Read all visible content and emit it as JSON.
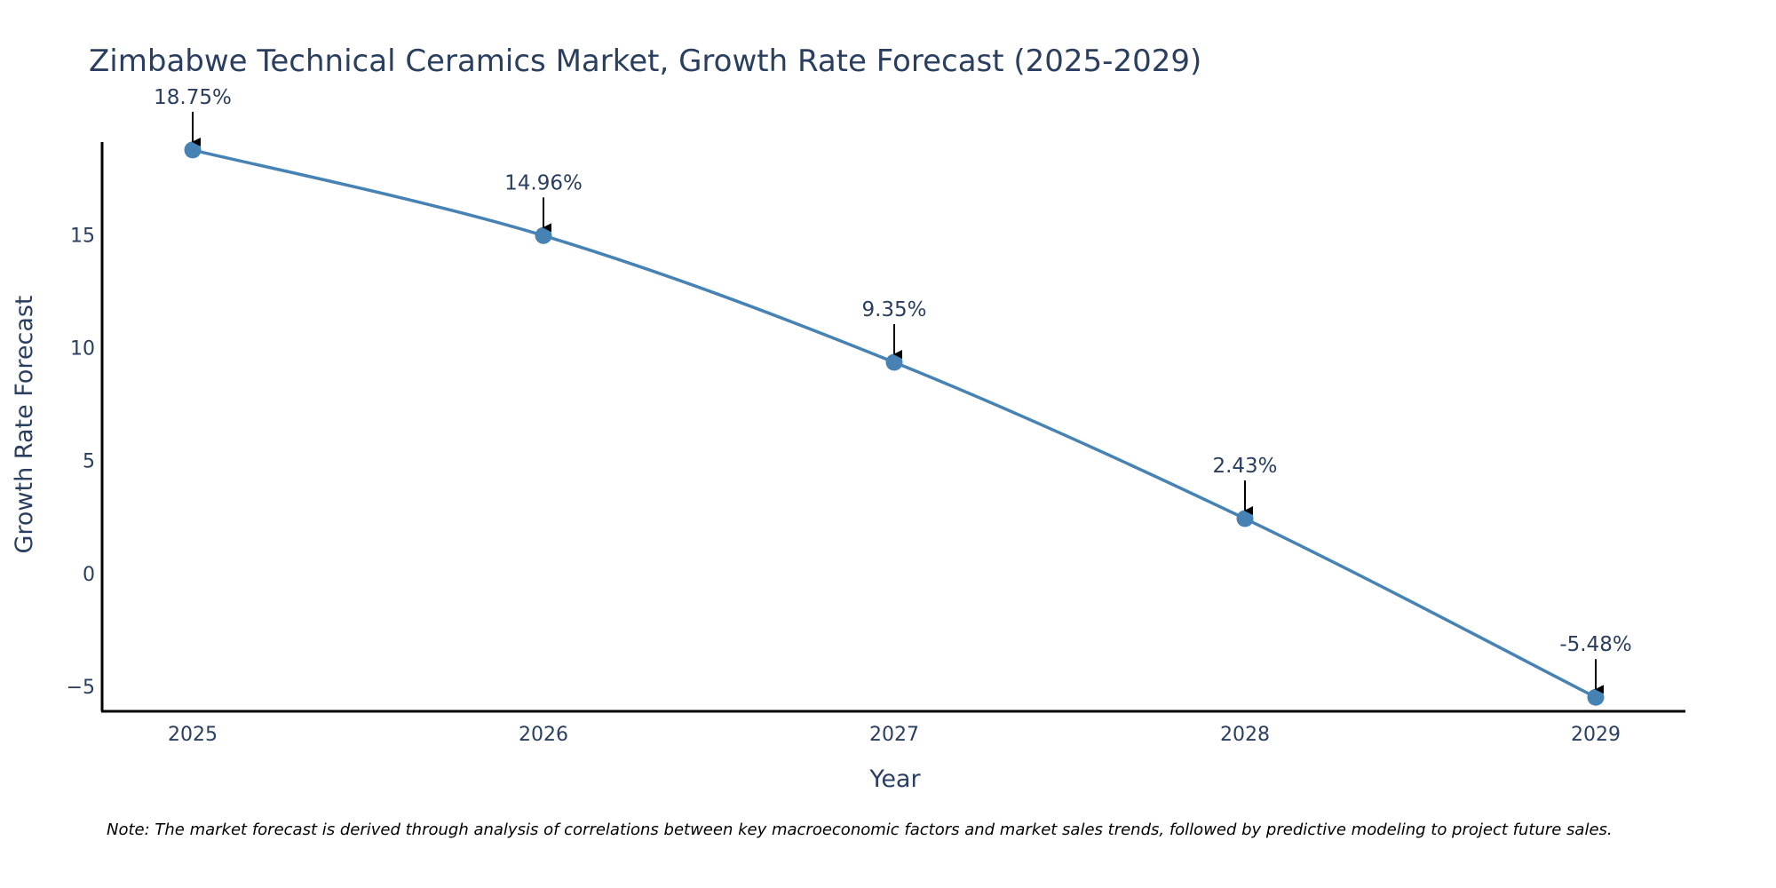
{
  "chart_data": {
    "type": "line",
    "title": "Zimbabwe Technical Ceramics Market, Growth Rate Forecast (2025-2029)",
    "xlabel": "Year",
    "ylabel": "Growth Rate Forecast",
    "categories": [
      "2025",
      "2026",
      "2027",
      "2028",
      "2029"
    ],
    "values": [
      18.75,
      14.96,
      9.35,
      2.43,
      -5.48
    ],
    "data_labels": [
      "18.75%",
      "14.96%",
      "9.35%",
      "2.43%",
      "-5.48%"
    ],
    "ylim": [
      -6.1,
      19.1
    ],
    "yticks": [
      -5,
      0,
      5,
      10,
      15
    ],
    "ytick_labels": [
      "−5",
      "0",
      "5",
      "10",
      "15"
    ],
    "line_shape": "spline",
    "line_color": "#4682b4",
    "marker_color": "#4682b4",
    "annotation_arrow_color": "#000000",
    "axis_color": "#000000",
    "grid": false,
    "legend": "none",
    "note": "Note: The market forecast is derived through analysis of correlations between key macroeconomic factors and market sales trends, followed by predictive modeling to project future sales."
  }
}
